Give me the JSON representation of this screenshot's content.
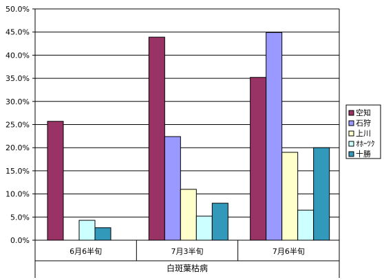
{
  "chart_data": {
    "type": "bar",
    "title": "",
    "xlabel": "白斑葉枯病",
    "ylabel": "",
    "categories": [
      "6月6半旬",
      "7月3半旬",
      "7月6半旬"
    ],
    "ylim": [
      0,
      50
    ],
    "yticks": [
      0,
      5,
      10,
      15,
      20,
      25,
      30,
      35,
      40,
      45,
      50
    ],
    "ytick_labels": [
      "0.0%",
      "5.0%",
      "10.0%",
      "15.0%",
      "20.0%",
      "25.0%",
      "30.0%",
      "35.0%",
      "40.0%",
      "45.0%",
      "50.0%"
    ],
    "grid": true,
    "legend_position": "right",
    "series": [
      {
        "name": "空知",
        "color": "#993366",
        "values": [
          25.7,
          43.9,
          35.2
        ]
      },
      {
        "name": "石狩",
        "color": "#9999ff",
        "values": [
          0,
          22.4,
          44.9
        ]
      },
      {
        "name": "上川",
        "color": "#ffffcc",
        "values": [
          0,
          11.0,
          19.0
        ]
      },
      {
        "name": "ｵﾎｰﾂｸ",
        "color": "#ccffff",
        "values": [
          4.3,
          5.2,
          6.5
        ]
      },
      {
        "name": "十勝",
        "color": "#3399bb",
        "values": [
          2.7,
          8.0,
          20.0
        ]
      }
    ]
  }
}
